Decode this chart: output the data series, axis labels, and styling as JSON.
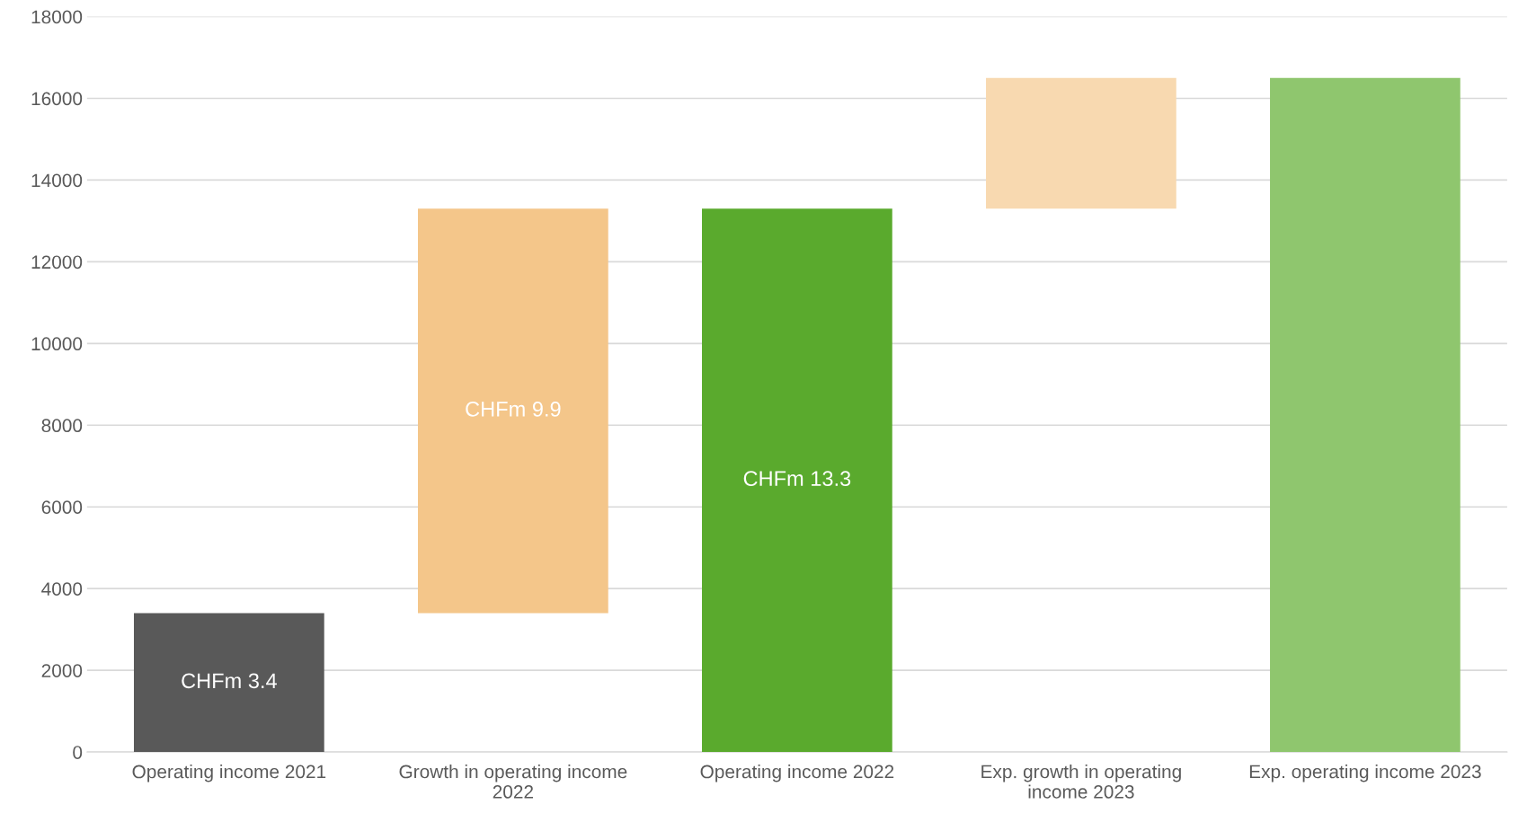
{
  "chart_data": {
    "type": "bar",
    "categories": [
      "Operating income 2021",
      "Growth in operating income 2022",
      "Operating income 2022",
      "Exp. growth in operating income 2023",
      "Exp. operating income 2023"
    ],
    "values": [
      3400,
      9900,
      13300,
      3200,
      16500
    ],
    "base": [
      0,
      3400,
      0,
      13300,
      0
    ],
    "colors": [
      "#595959",
      "#f4c68a",
      "#5aaa2d",
      "#f8d9b0",
      "#8fc66e"
    ],
    "value_labels": [
      "CHFm 3.4",
      "CHFm 9.9",
      "CHFm 13.3",
      null,
      null
    ],
    "ylim": [
      0,
      18000
    ],
    "yticks": [
      0,
      2000,
      4000,
      6000,
      8000,
      10000,
      12000,
      14000,
      16000,
      18000
    ],
    "grid": "y",
    "legend": false
  }
}
